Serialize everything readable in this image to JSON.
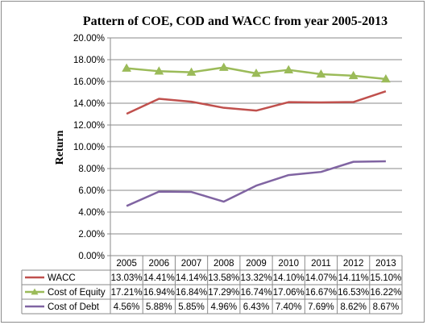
{
  "chart_data": {
    "type": "line",
    "title": "Pattern of COE, COD and WACC from year 2005-2013",
    "xlabel": "",
    "ylabel": "Return",
    "categories": [
      "2005",
      "2006",
      "2007",
      "2008",
      "2009",
      "2010",
      "2011",
      "2012",
      "2013"
    ],
    "ylim": [
      0,
      20
    ],
    "yticks": [
      "0.00%",
      "2.00%",
      "4.00%",
      "6.00%",
      "8.00%",
      "10.00%",
      "12.00%",
      "14.00%",
      "16.00%",
      "18.00%",
      "20.00%"
    ],
    "grid": true,
    "legend": "data-table-left",
    "series": [
      {
        "name": "WACC",
        "color": "#c0504d",
        "marker": "none",
        "values": [
          13.03,
          14.41,
          14.14,
          13.58,
          13.32,
          14.1,
          14.07,
          14.11,
          15.1
        ],
        "labels": [
          "13.03%",
          "14.41%",
          "14.14%",
          "13.58%",
          "13.32%",
          "14.10%",
          "14.07%",
          "14.11%",
          "15.10%"
        ]
      },
      {
        "name": "Cost of Equity",
        "color": "#9bbb59",
        "marker": "triangle",
        "values": [
          17.21,
          16.94,
          16.84,
          17.29,
          16.74,
          17.06,
          16.67,
          16.53,
          16.22
        ],
        "labels": [
          "17.21%",
          "16.94%",
          "16.84%",
          "17.29%",
          "16.74%",
          "17.06%",
          "16.67%",
          "16.53%",
          "16.22%"
        ]
      },
      {
        "name": "Cost of Debt",
        "color": "#8064a2",
        "marker": "none",
        "values": [
          4.56,
          5.88,
          5.85,
          4.96,
          6.43,
          7.4,
          7.69,
          8.62,
          8.67
        ],
        "labels": [
          "4.56%",
          "5.88%",
          "5.85%",
          "4.96%",
          "6.43%",
          "7.40%",
          "7.69%",
          "8.62%",
          "8.67%"
        ]
      }
    ]
  }
}
